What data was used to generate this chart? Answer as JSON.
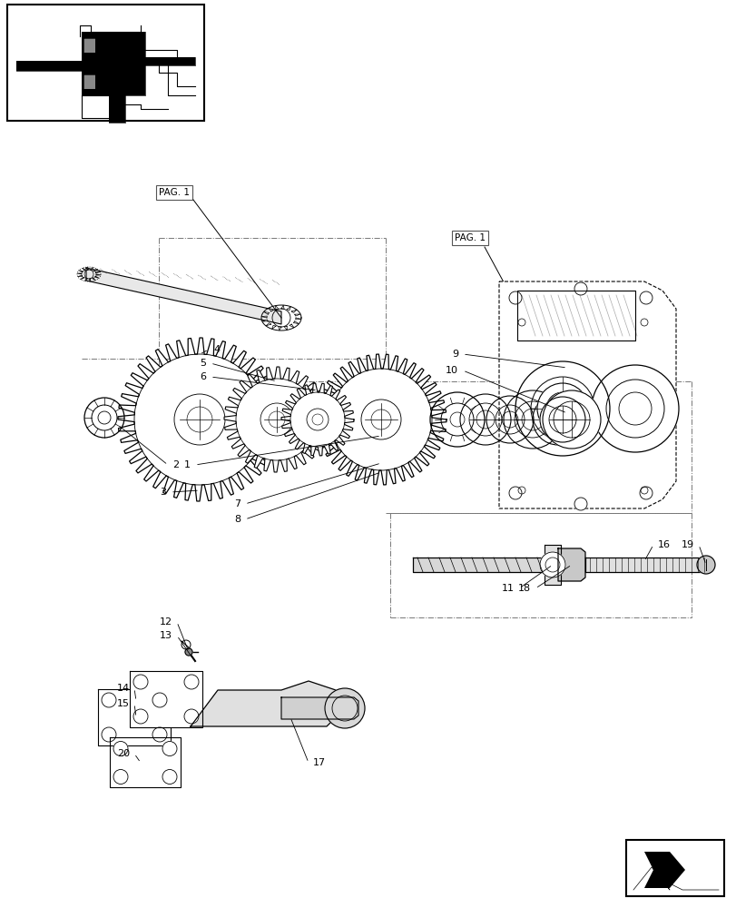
{
  "bg_color": "#ffffff",
  "line_color": "#000000",
  "dash_color": "#777777",
  "fig_width": 8.12,
  "fig_height": 10.0,
  "dpi": 100
}
